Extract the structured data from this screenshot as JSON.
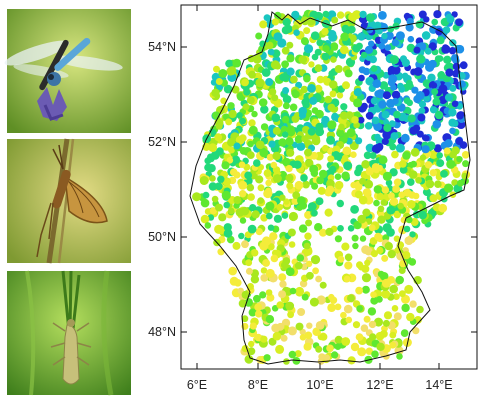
{
  "figure": {
    "photos": [
      {
        "subject": "dragonfly",
        "palette": {
          "bg1": "#c9dc6a",
          "bg2": "#6f9a2f",
          "body": "#5aa6d9",
          "wing": "#e9f1f7",
          "flower": "#6b5bb3"
        }
      },
      {
        "subject": "mayfly",
        "palette": {
          "bg1": "#d8d176",
          "bg2": "#8aa23a",
          "body": "#9a6a2e",
          "wing": "#c79a4a",
          "stem": "#6f5a2a"
        }
      },
      {
        "subject": "stonefly",
        "palette": {
          "bg1": "#9fcf4f",
          "bg2": "#4f8f22",
          "body": "#b6b26a",
          "grass": "#3e7d1a"
        }
      }
    ]
  },
  "map": {
    "x_ticks": [
      "6°E",
      "8°E",
      "10°E",
      "12°E",
      "14°E"
    ],
    "y_ticks": [
      "48°N",
      "50°N",
      "52°N",
      "54°N"
    ],
    "colors": [
      "#1f2bd6",
      "#1e90e8",
      "#19c6c0",
      "#22d97a",
      "#5ee830",
      "#a8e81e",
      "#d8ee22",
      "#f4ec3a",
      "#f2df6a"
    ]
  }
}
